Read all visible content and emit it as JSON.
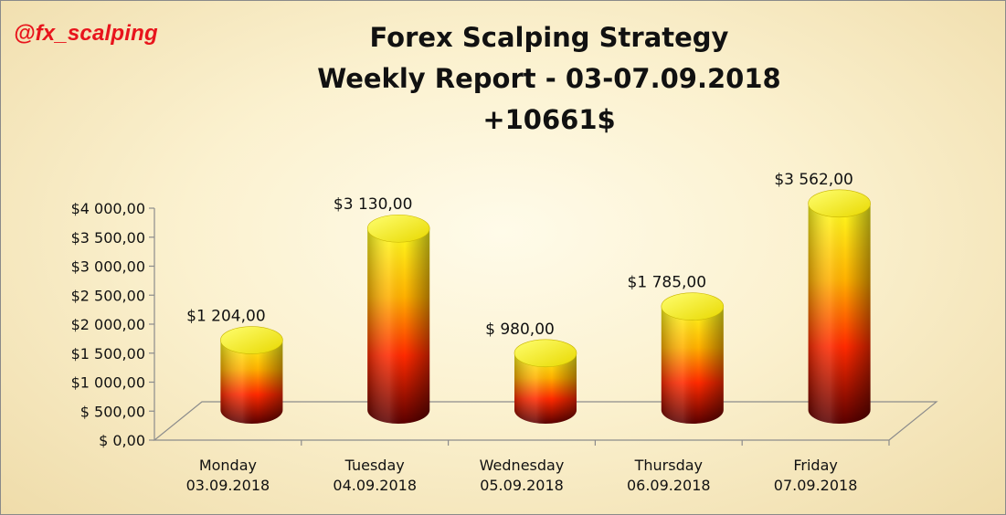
{
  "brand": "@fx_scalping",
  "title": {
    "line1": "Forex Scalping Strategy",
    "line2": "Weekly Report - 03-07.09.2018",
    "line3": "+10661$"
  },
  "chart_data": {
    "type": "bar",
    "style": "3d-cylinder",
    "categories": [
      [
        "Monday",
        "03.09.2018"
      ],
      [
        "Tuesday",
        "04.09.2018"
      ],
      [
        "Wednesday",
        "05.09.2018"
      ],
      [
        "Thursday",
        "06.09.2018"
      ],
      [
        "Friday",
        "07.09.2018"
      ]
    ],
    "values": [
      1204,
      3130,
      980,
      1785,
      3562
    ],
    "data_labels": [
      "$1 204,00",
      "$3 130,00",
      "$ 980,00",
      "$1 785,00",
      "$3 562,00"
    ],
    "yticks": [
      0,
      500,
      1000,
      1500,
      2000,
      2500,
      3000,
      3500,
      4000
    ],
    "ytick_labels": [
      "$ 0,00",
      "$ 500,00",
      "$1 000,00",
      "$1 500,00",
      "$2 000,00",
      "$2 500,00",
      "$3 000,00",
      "$3 500,00",
      "$4 000,00"
    ],
    "ylim": [
      0,
      4000
    ],
    "grid": false,
    "legend": "none",
    "colors": {
      "bar_top": "#ffff20",
      "bar_mid": "#ff8c00",
      "bar_low": "#ff1a00",
      "bar_base": "#5a0000",
      "brand": "#e8141c"
    }
  }
}
